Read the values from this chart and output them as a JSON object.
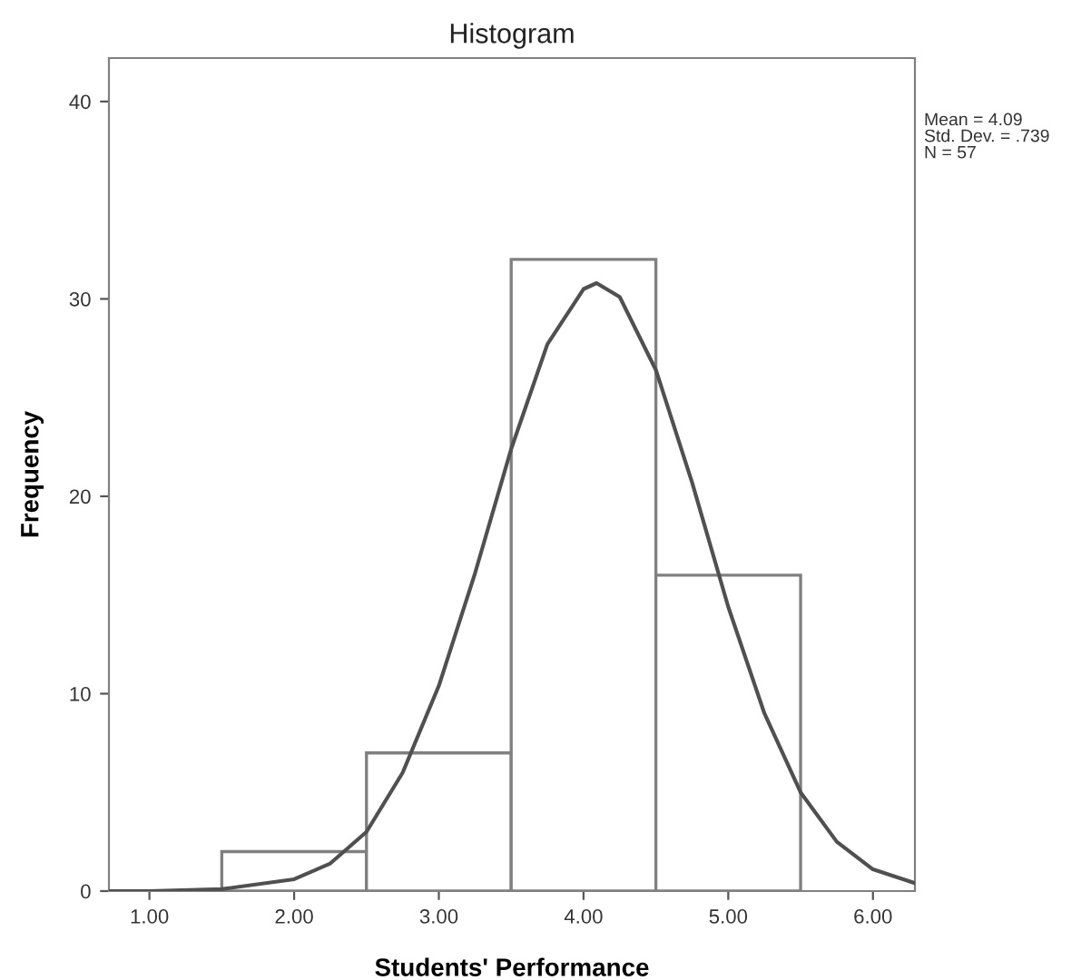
{
  "chart_data": {
    "type": "histogram",
    "title": "Histogram",
    "xlabel": "Students' Performance",
    "ylabel": "Frequency",
    "bins": [
      1.5,
      2.5,
      3.5,
      4.5,
      5.5
    ],
    "values": [
      2,
      7,
      32,
      16
    ],
    "color": "#ffffff",
    "series": [
      {
        "type": "line",
        "color": "#505050",
        "x": [
          0.72,
          1.0,
          1.5,
          2.0,
          2.25,
          2.5,
          2.75,
          3.0,
          3.25,
          3.5,
          3.75,
          4.0,
          4.09,
          4.25,
          4.5,
          4.75,
          5.0,
          5.25,
          5.5,
          5.75,
          6.0,
          6.29
        ],
        "values": [
          0.0,
          0.0,
          0.1,
          0.6,
          1.4,
          3.0,
          6.0,
          10.4,
          16.1,
          22.4,
          27.7,
          30.5,
          30.8,
          30.1,
          26.4,
          20.7,
          14.4,
          9.0,
          5.0,
          2.5,
          1.1,
          0.4
        ]
      }
    ],
    "xlim": [
      0.72,
      6.29
    ],
    "xticks": [
      {
        "value": 1,
        "label": "1.00"
      },
      {
        "value": 2,
        "label": "2.00"
      },
      {
        "value": 3,
        "label": "3.00"
      },
      {
        "value": 4,
        "label": "4.00"
      },
      {
        "value": 5,
        "label": "5.00"
      },
      {
        "value": 6,
        "label": "6.00"
      }
    ],
    "ylim": [
      0,
      42.2
    ],
    "yticks": [
      0,
      10,
      20,
      30,
      40
    ],
    "grid": false,
    "legend": false,
    "annotations": [
      "Mean = 4.09\nStd. Dev. = .739\nN = 57"
    ]
  }
}
